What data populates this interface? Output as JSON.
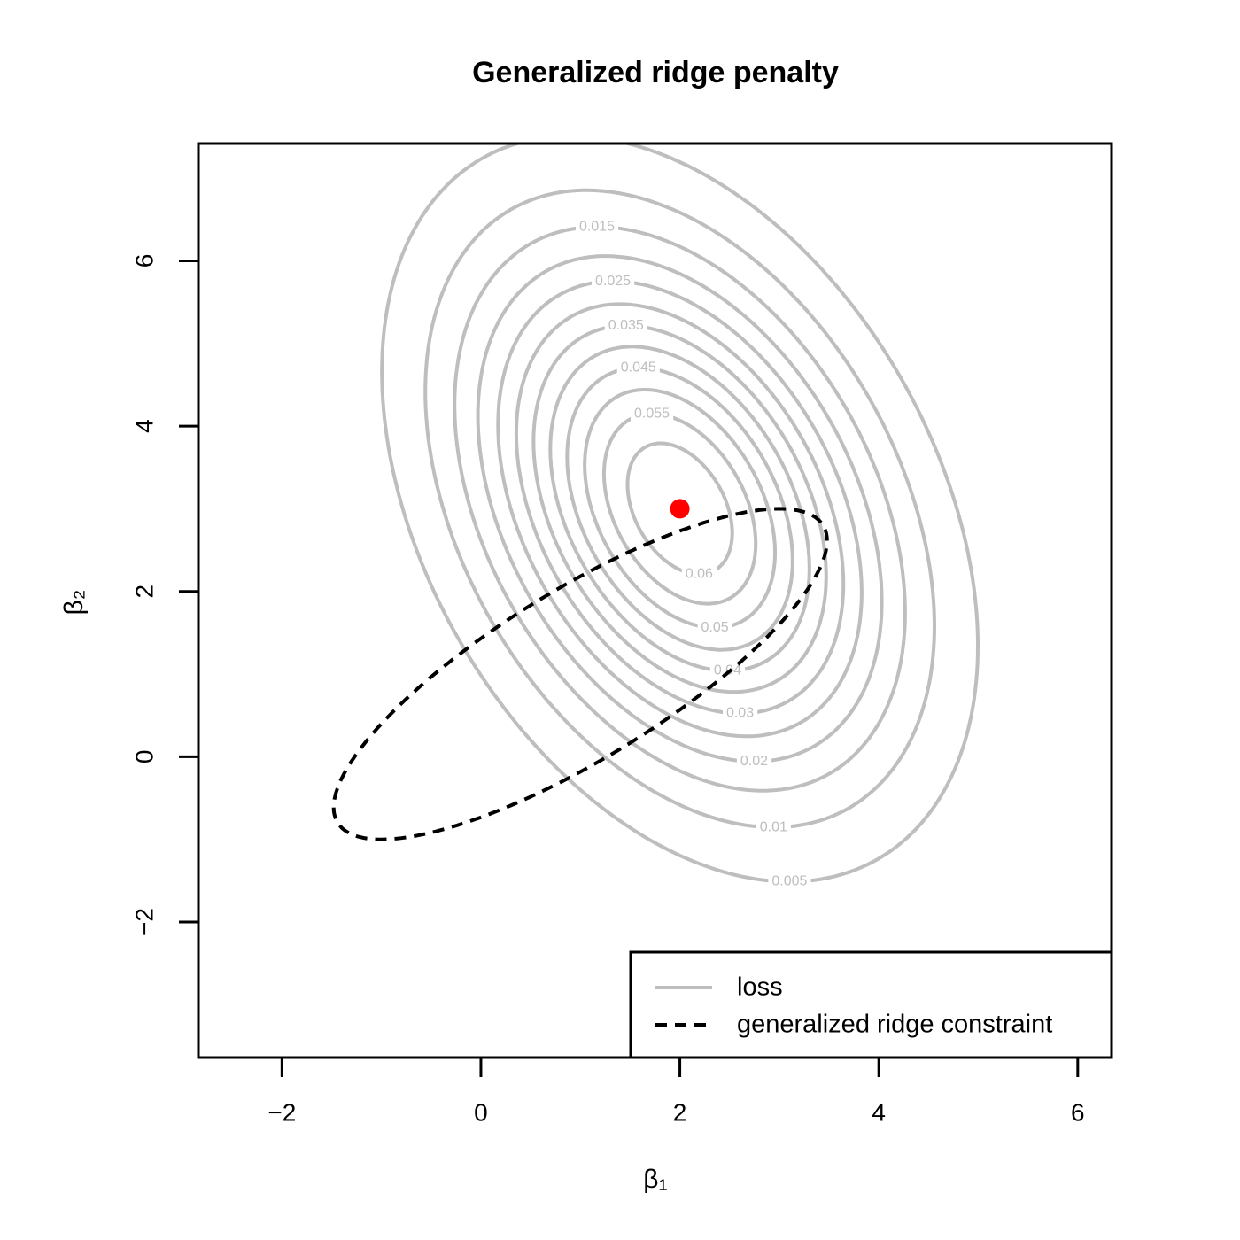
{
  "chart_data": {
    "type": "contour",
    "title": "Generalized ridge penalty",
    "x_label": "β₁",
    "y_label": "β₂",
    "xlim": [
      -2.84,
      6.34
    ],
    "ylim": [
      -3.64,
      7.42
    ],
    "xticks": [
      {
        "value": -2,
        "label": "−2"
      },
      0,
      2,
      4,
      6
    ],
    "yticks": [
      {
        "value": -2,
        "label": "−2"
      },
      0,
      2,
      4,
      6
    ],
    "loss": {
      "name": "loss",
      "color": "#bebebe",
      "levels": [
        0.005,
        0.01,
        0.015,
        0.02,
        0.025,
        0.03,
        0.035,
        0.04,
        0.045,
        0.05,
        0.055,
        0.06
      ],
      "mean": [
        2,
        3
      ],
      "cov": [
        [
          1.75,
          -0.97
        ],
        [
          -0.97,
          3.97
        ]
      ]
    },
    "constraint": {
      "name": "generalized ridge constraint",
      "color": "#000000",
      "center": [
        1,
        1
      ],
      "shape": [
        [
          6.15,
          4
        ],
        [
          4,
          4
        ]
      ]
    },
    "point": {
      "x": 2,
      "y": 3,
      "color": "#ff0000"
    },
    "legend": "bottom-right"
  }
}
